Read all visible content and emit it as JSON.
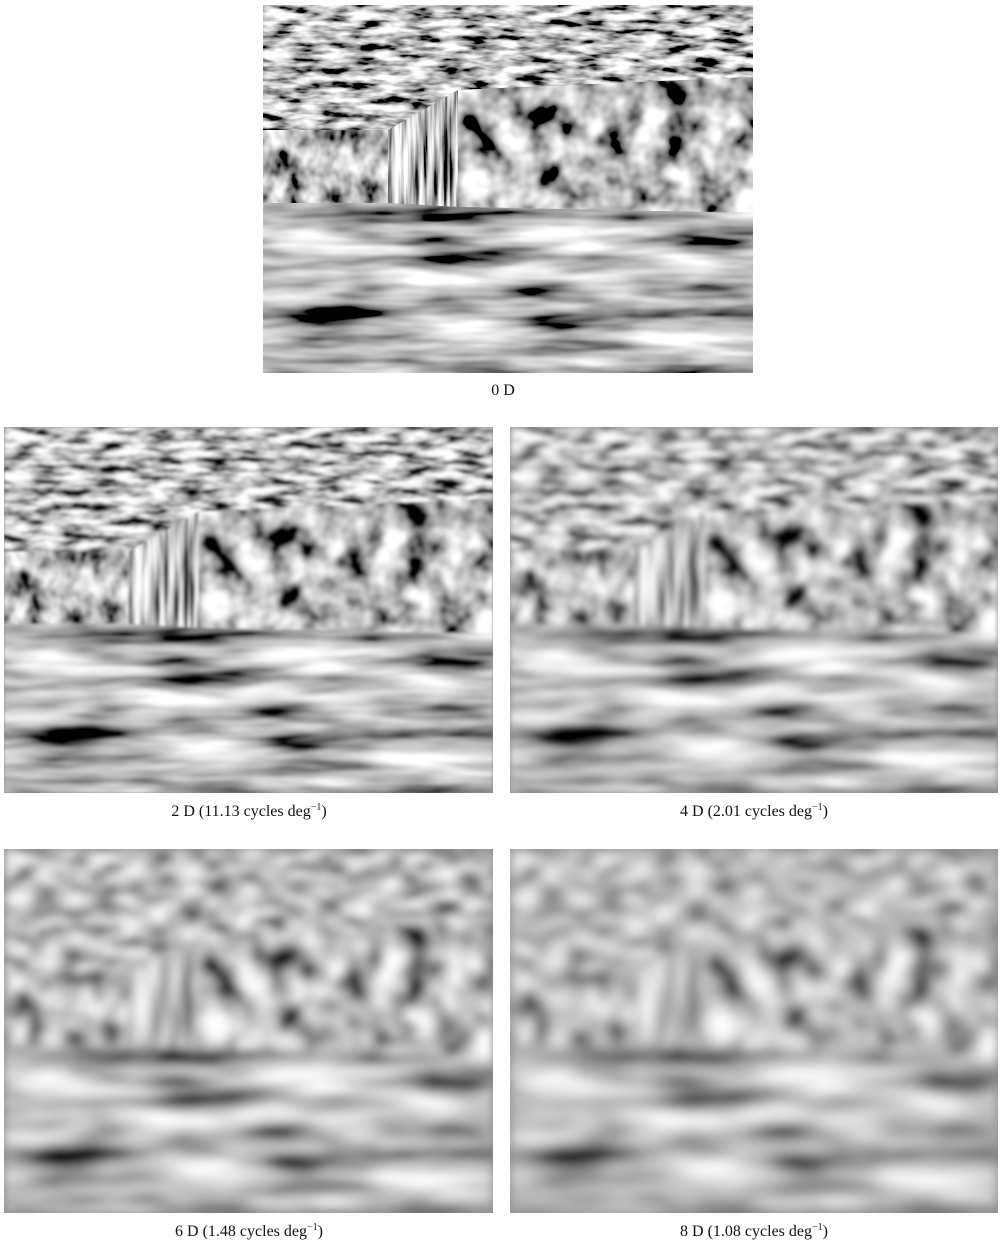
{
  "panels": [
    {
      "caption": "0 D"
    },
    {
      "caption": "2 D (11.13 cycles deg",
      "superscript": "−1",
      "caption_end": ")"
    },
    {
      "caption": "4 D (2.01 cycles deg",
      "superscript": "−1",
      "caption_end": ")"
    },
    {
      "caption": "6 D (1.48 cycles deg",
      "superscript": "−1",
      "caption_end": ")"
    },
    {
      "caption": "8 D (1.08 cycles deg",
      "superscript": "−1",
      "caption_end": ")"
    }
  ]
}
